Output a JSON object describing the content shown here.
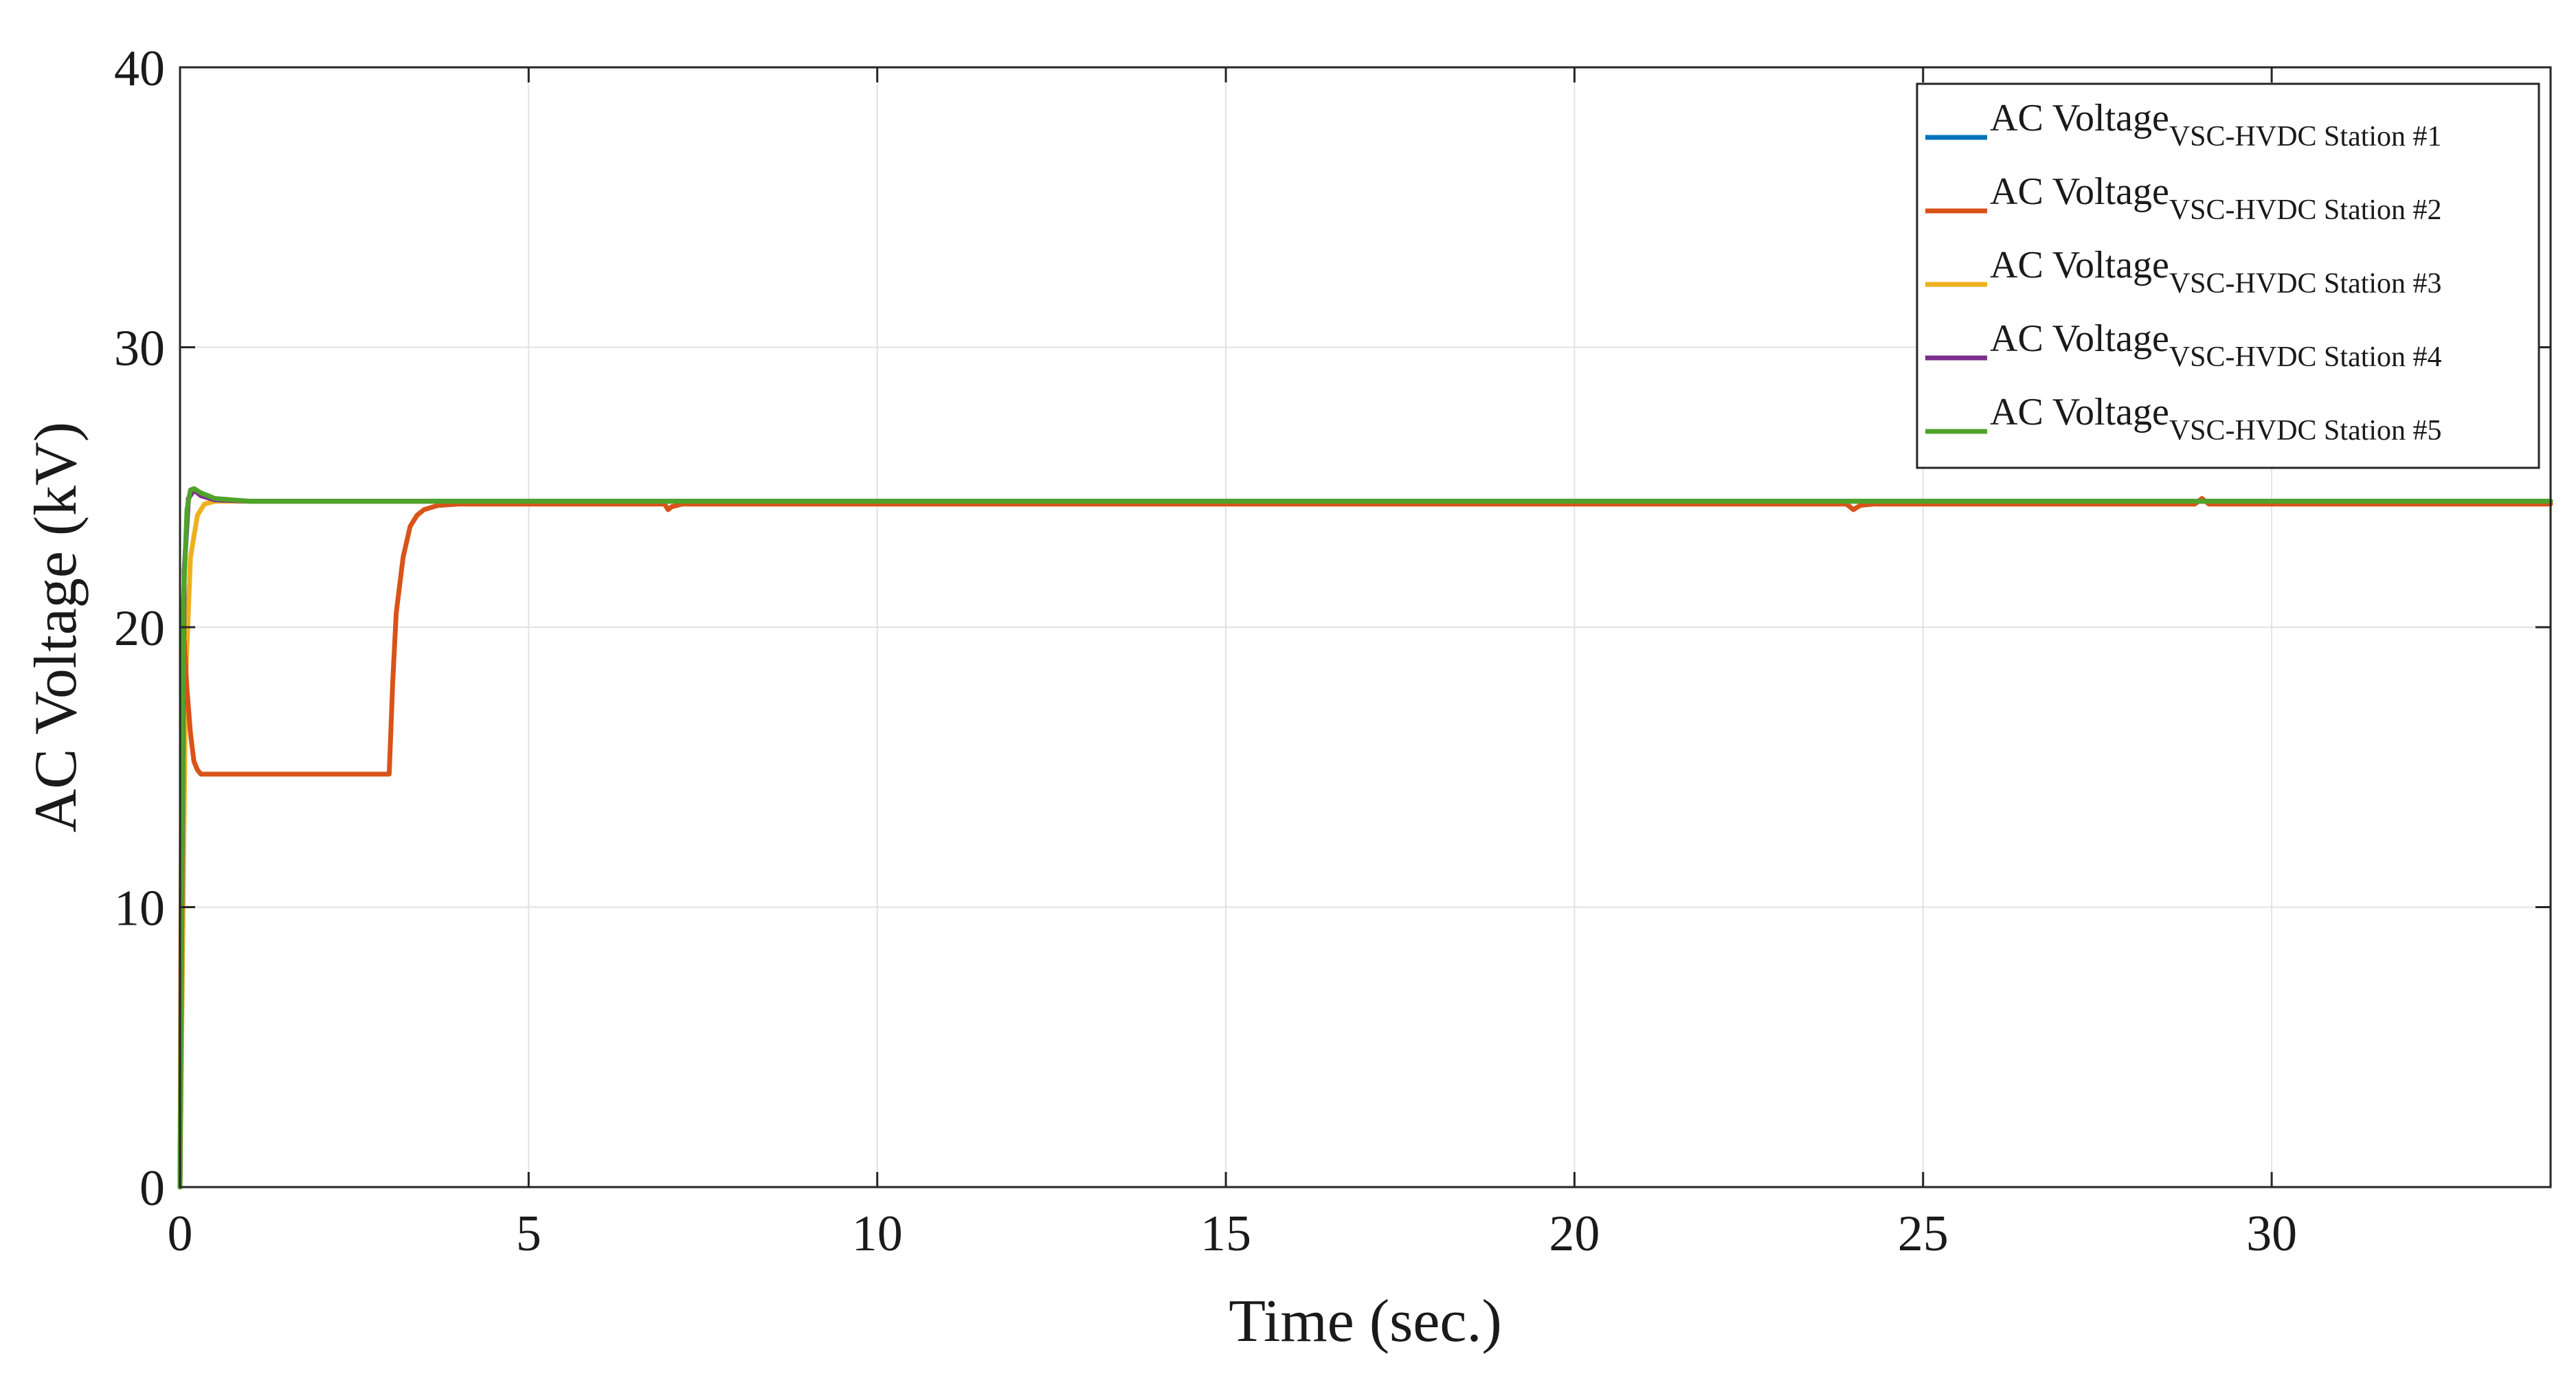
{
  "chart_data": {
    "type": "line",
    "title": "",
    "xlabel": "Time (sec.)",
    "ylabel": "AC Voltage (kV)",
    "xlim": [
      0,
      34
    ],
    "ylim": [
      0,
      40
    ],
    "xticks": [
      0,
      5,
      10,
      15,
      20,
      25,
      30
    ],
    "yticks": [
      0,
      10,
      20,
      30,
      40
    ],
    "xtick_labels": [
      "0",
      "5",
      "10",
      "15",
      "20",
      "25",
      "30"
    ],
    "ytick_labels": [
      "0",
      "10",
      "20",
      "30",
      "40"
    ],
    "grid": true,
    "legend_position": "top-right",
    "series": [
      {
        "name": "AC Voltage",
        "name_subscript": "VSC-HVDC Station #1",
        "color": "#0072BD",
        "x": [
          0,
          0.06,
          0.12,
          0.2,
          0.3,
          0.5,
          1,
          5,
          10,
          15,
          20,
          25,
          30,
          34
        ],
        "y": [
          0,
          22.0,
          24.6,
          24.9,
          24.7,
          24.55,
          24.5,
          24.5,
          24.5,
          24.5,
          24.5,
          24.5,
          24.5,
          24.5
        ]
      },
      {
        "name": "AC Voltage",
        "name_subscript": "VSC-HVDC Station #2",
        "color": "#D95319",
        "x": [
          0,
          0.03,
          0.06,
          0.1,
          0.15,
          0.2,
          0.25,
          0.3,
          0.4,
          0.6,
          1,
          2,
          2.9,
          3.0,
          3.05,
          3.1,
          3.2,
          3.3,
          3.4,
          3.5,
          3.7,
          4,
          5,
          6,
          6.95,
          7.0,
          7.05,
          7.2,
          8,
          10,
          15,
          20,
          23.9,
          24.0,
          24.1,
          24.3,
          25,
          28.9,
          29.0,
          29.1,
          30,
          34
        ],
        "y": [
          0,
          20.0,
          19.5,
          17.8,
          16.2,
          15.2,
          14.9,
          14.75,
          14.75,
          14.75,
          14.75,
          14.75,
          14.75,
          14.75,
          18.0,
          20.5,
          22.5,
          23.6,
          24.0,
          24.2,
          24.35,
          24.4,
          24.4,
          24.4,
          24.4,
          24.2,
          24.3,
          24.4,
          24.4,
          24.4,
          24.4,
          24.4,
          24.4,
          24.2,
          24.35,
          24.4,
          24.4,
          24.4,
          24.6,
          24.4,
          24.4,
          24.4
        ]
      },
      {
        "name": "AC Voltage",
        "name_subscript": "VSC-HVDC Station #3",
        "color": "#EDB120",
        "x": [
          0,
          0.08,
          0.15,
          0.25,
          0.35,
          0.5,
          1,
          5,
          10,
          15,
          20,
          25,
          30,
          34
        ],
        "y": [
          0,
          18.0,
          22.5,
          24.0,
          24.4,
          24.5,
          24.5,
          24.5,
          24.5,
          24.5,
          24.5,
          24.5,
          24.5,
          24.5
        ]
      },
      {
        "name": "AC Voltage",
        "name_subscript": "VSC-HVDC Station #4",
        "color": "#7E2F8E",
        "x": [
          0,
          0.06,
          0.12,
          0.2,
          0.3,
          0.5,
          1,
          5,
          10,
          15,
          20,
          25,
          30,
          34
        ],
        "y": [
          0,
          22.0,
          24.6,
          24.9,
          24.7,
          24.55,
          24.5,
          24.5,
          24.5,
          24.5,
          24.5,
          24.5,
          24.5,
          24.5
        ]
      },
      {
        "name": "AC Voltage",
        "name_subscript": "VSC-HVDC Station #5",
        "color": "#4FA32A",
        "x": [
          0,
          0.05,
          0.1,
          0.15,
          0.2,
          0.3,
          0.5,
          1,
          5,
          10,
          15,
          20,
          25,
          30,
          34
        ],
        "y": [
          0,
          21.0,
          24.2,
          24.9,
          24.95,
          24.8,
          24.6,
          24.5,
          24.5,
          24.5,
          24.5,
          24.5,
          24.5,
          24.5,
          24.5
        ]
      }
    ]
  }
}
